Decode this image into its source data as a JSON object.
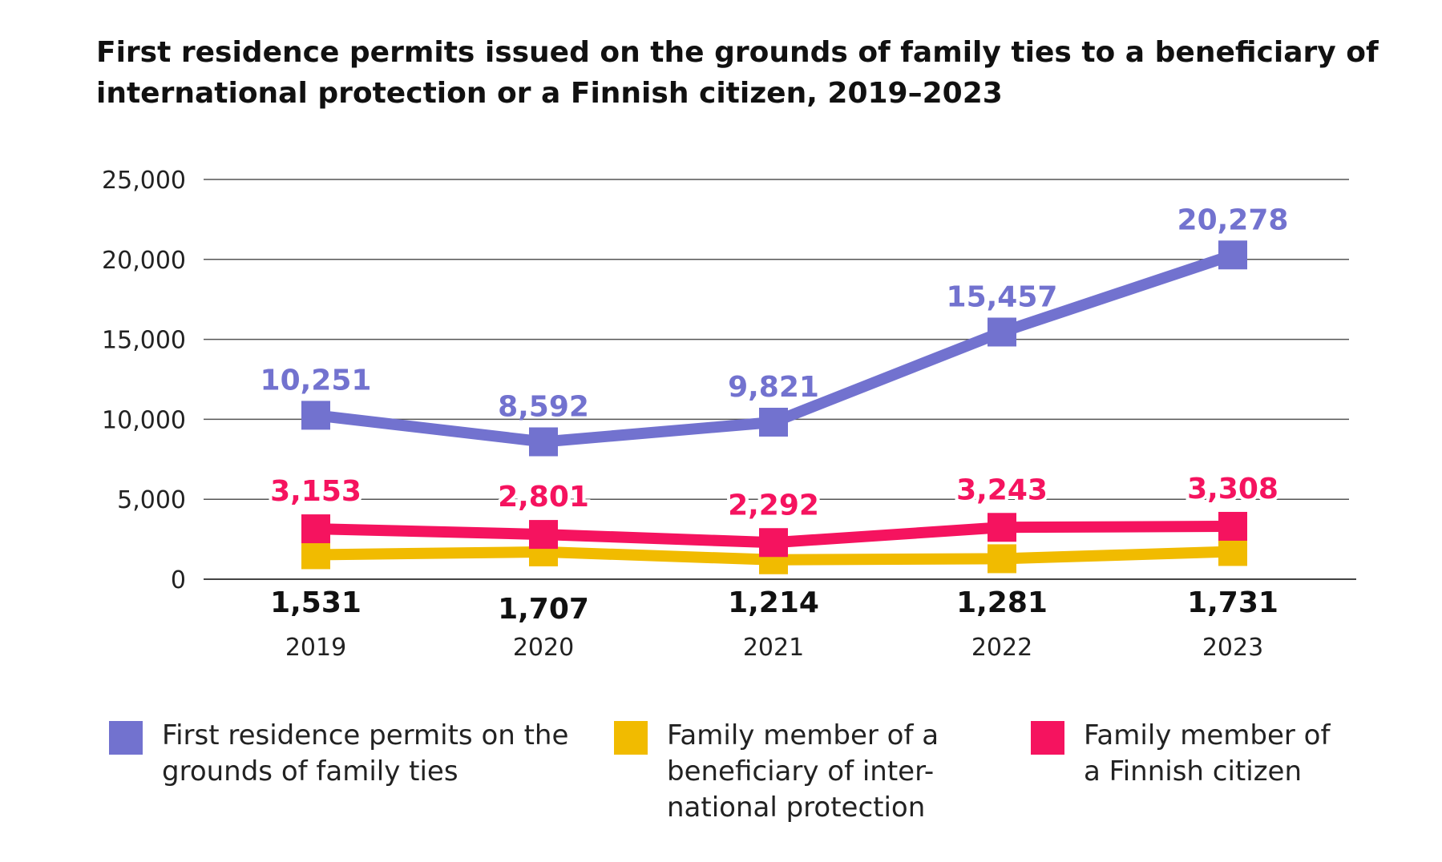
{
  "title": "First residence permits issued on the grounds of family ties to a beneficiary of international protection or a Finnish citizen, 2019–2023",
  "chart_data": {
    "type": "line",
    "title": "First residence permits issued on the grounds of family ties to a beneficiary of international protection or a Finnish citizen, 2019–2023",
    "xlabel": "",
    "ylabel": "",
    "x": [
      "2019",
      "2020",
      "2021",
      "2022",
      "2023"
    ],
    "ylim": [
      0,
      25000
    ],
    "yticks": [
      0,
      5000,
      10000,
      15000,
      20000,
      25000
    ],
    "ytick_labels": [
      "0",
      "5,000",
      "10,000",
      "15,000",
      "20,000",
      "25,000"
    ],
    "grid": true,
    "legend_position": "bottom",
    "series": [
      {
        "name": "First residence permits on the grounds of family ties",
        "color": "#7272cf",
        "values": [
          10251,
          8592,
          9821,
          15457,
          20278
        ],
        "labels": [
          "10,251",
          "8,592",
          "9,821",
          "15,457",
          "20,278"
        ]
      },
      {
        "name": "Family member of a beneficiary of international protection",
        "color": "#f1bb00",
        "values": [
          1531,
          1707,
          1214,
          1281,
          1731
        ],
        "labels": [
          "1,531",
          "1,707",
          "1,214",
          "1,281",
          "1,731"
        ]
      },
      {
        "name": "Family member of a Finnish citizen",
        "color": "#f5135f",
        "values": [
          3153,
          2801,
          2292,
          3243,
          3308
        ],
        "labels": [
          "3,153",
          "2,801",
          "2,292",
          "3,243",
          "3,308"
        ]
      }
    ]
  },
  "legend": [
    {
      "label_lines": [
        "First residence permits on the",
        "grounds of family ties"
      ],
      "color": "#7272cf"
    },
    {
      "label_lines": [
        "Family member of a",
        "beneficiary of inter-",
        "national protection"
      ],
      "color": "#f1bb00"
    },
    {
      "label_lines": [
        "Family member of",
        "a Finnish citizen"
      ],
      "color": "#f5135f"
    }
  ]
}
